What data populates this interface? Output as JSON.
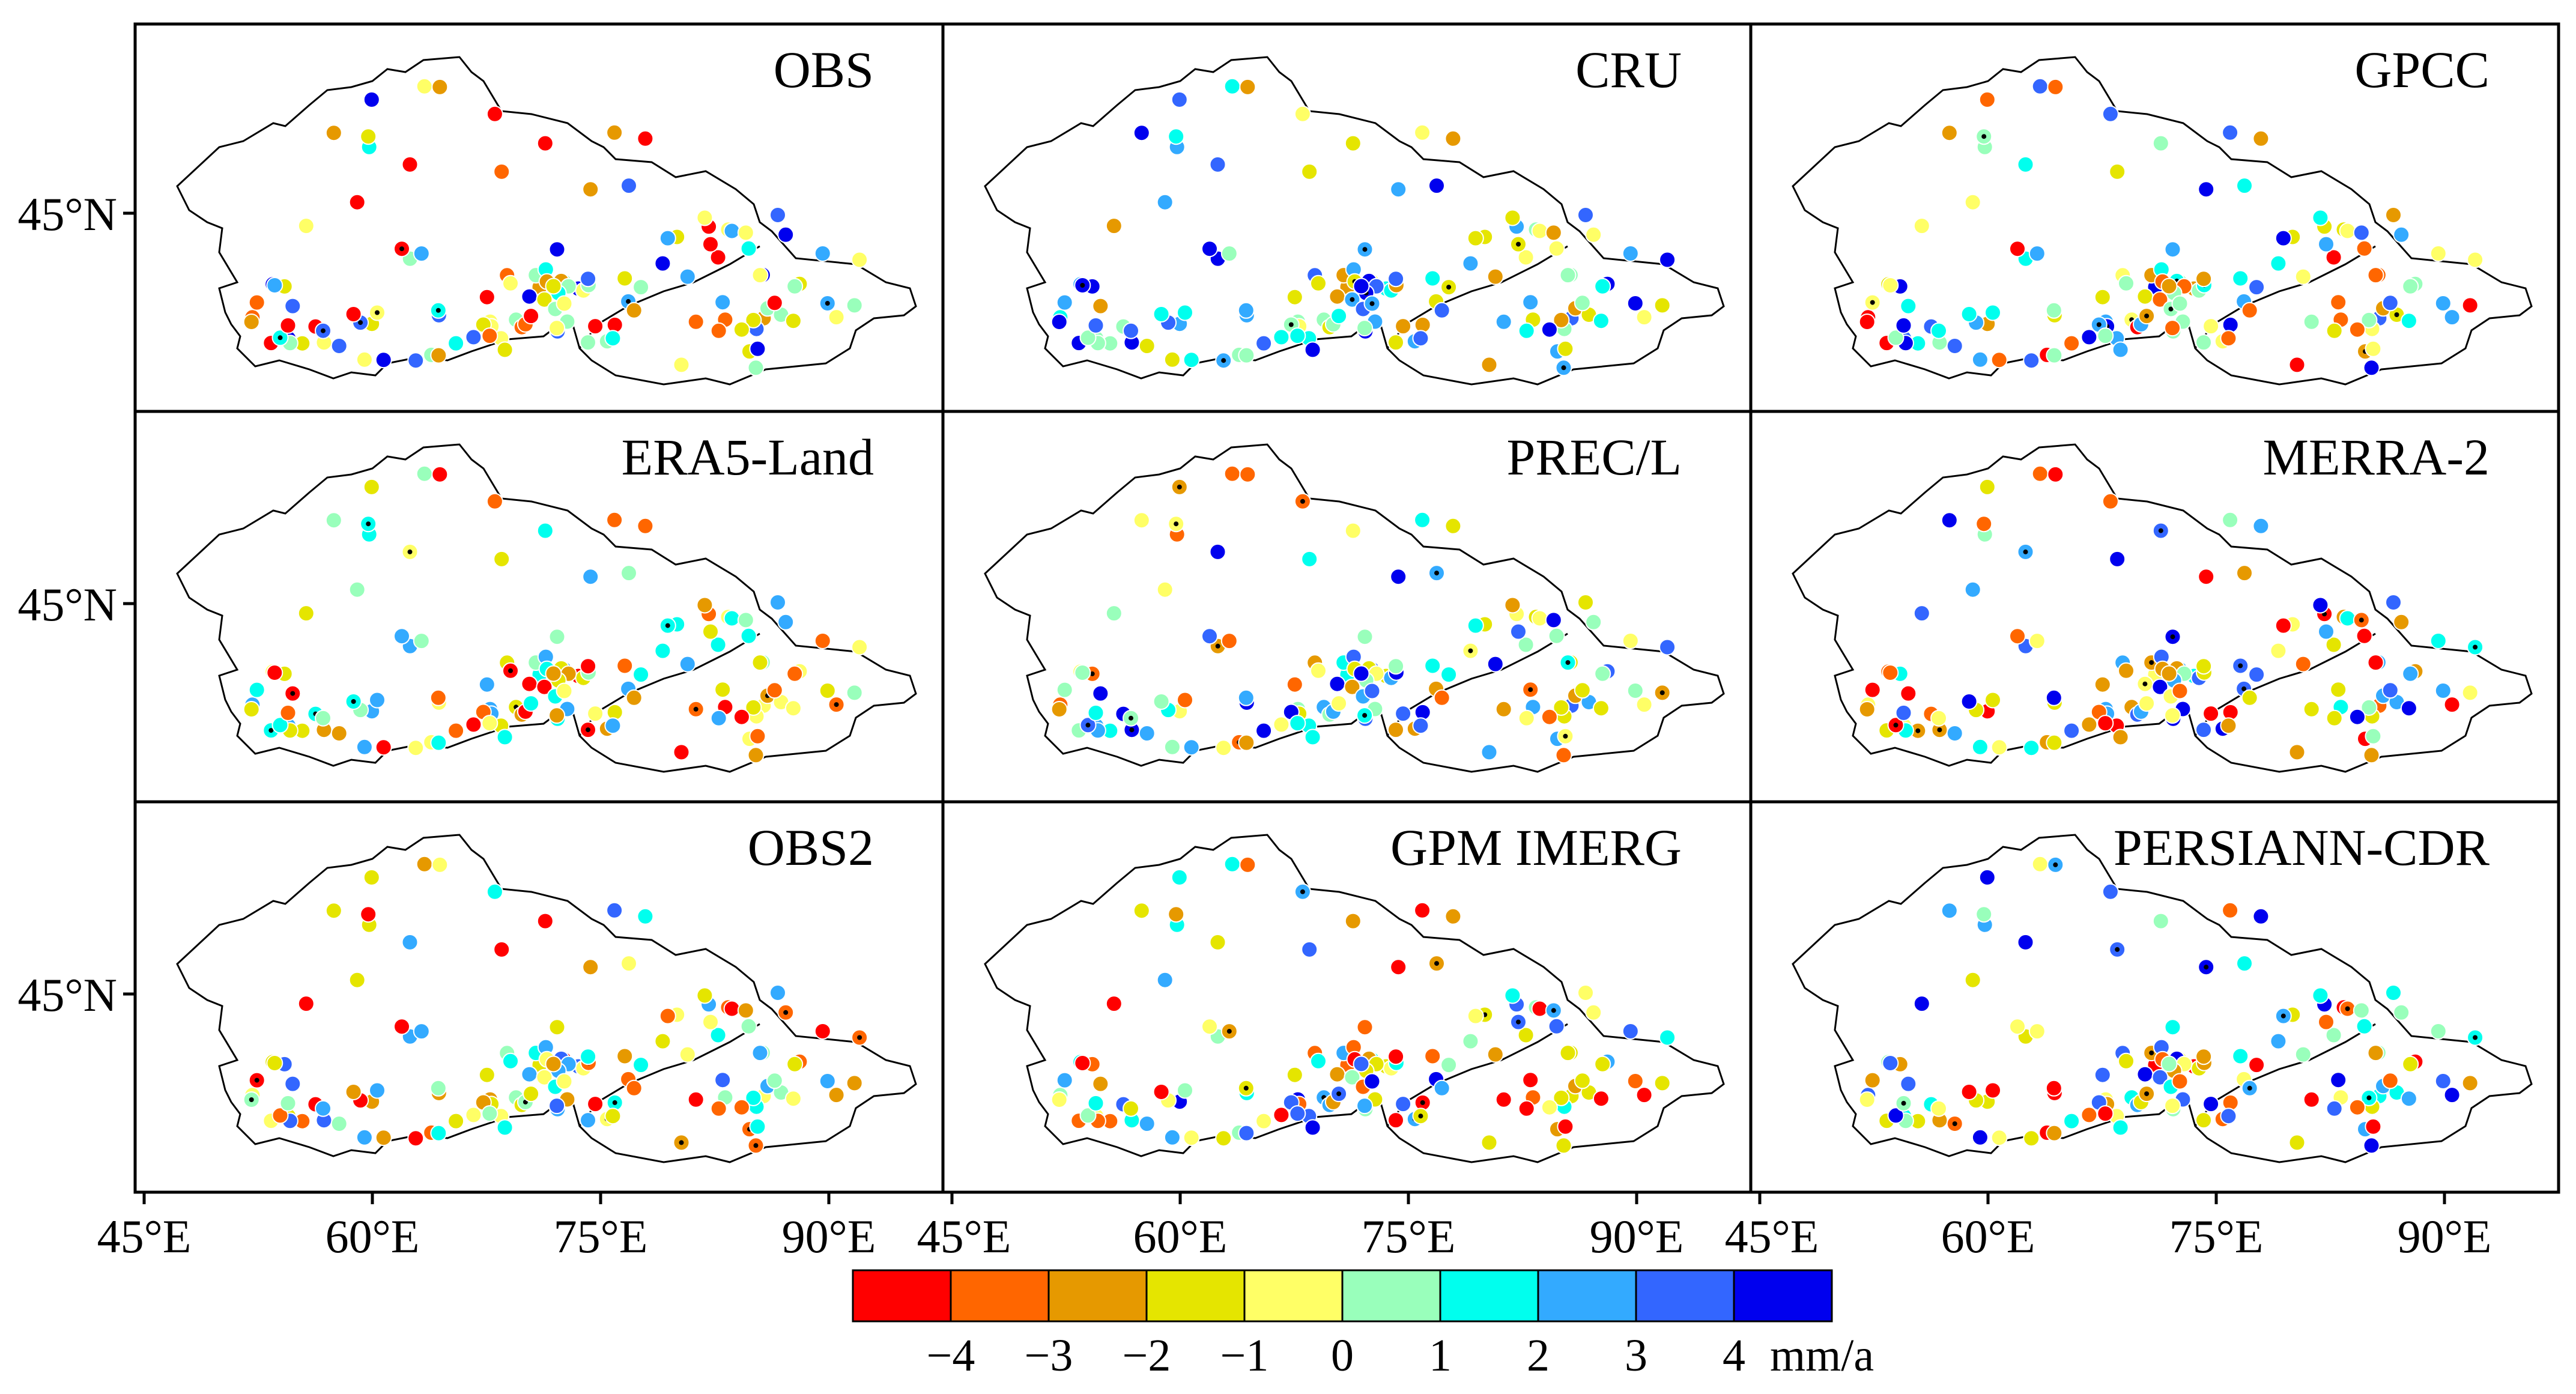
{
  "figure": {
    "panels": [
      {
        "id": "obs",
        "title": "OBS"
      },
      {
        "id": "cru",
        "title": "CRU"
      },
      {
        "id": "gpcc",
        "title": "GPCC"
      },
      {
        "id": "era5",
        "title": "ERA5-Land"
      },
      {
        "id": "precl",
        "title": "PREC/L"
      },
      {
        "id": "merra2",
        "title": "MERRA-2"
      },
      {
        "id": "obs2",
        "title": "OBS2"
      },
      {
        "id": "gpm",
        "title": "GPM IMERG"
      },
      {
        "id": "persiann",
        "title": "PERSIANN-CDR"
      }
    ],
    "y_tick_labels": [
      "45°N",
      "45°N",
      "45°N"
    ],
    "x_tick_labels": [
      "45°E",
      "60°E",
      "75°E",
      "90°E"
    ],
    "colorbar": {
      "colors": [
        "#ff0000",
        "#ff6600",
        "#e69900",
        "#e5e500",
        "#ffff66",
        "#99ffbb",
        "#00ffee",
        "#33aaff",
        "#3366ff",
        "#0000ee"
      ],
      "tick_labels": [
        "−4",
        "−3",
        "−2",
        "−1",
        "0",
        "1",
        "2",
        "3",
        "4"
      ],
      "unit": "mm/a"
    }
  }
}
